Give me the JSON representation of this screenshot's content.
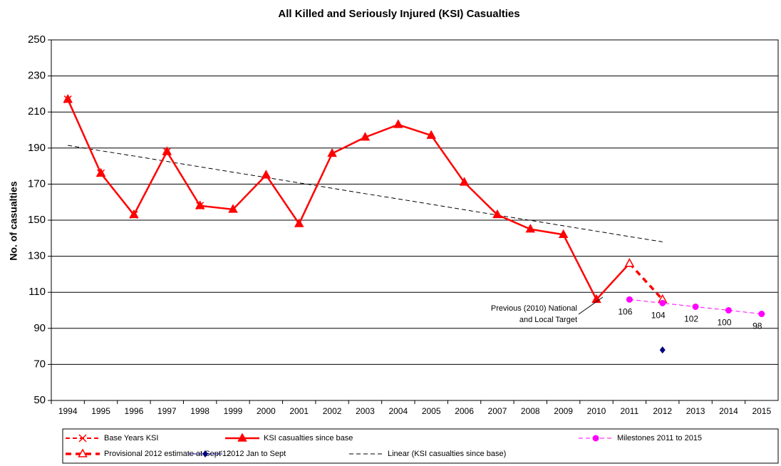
{
  "chart_data": {
    "type": "line",
    "title": "All Killed and Seriously Injured (KSI) Casualties",
    "y_label": "No. of casualties",
    "categories": [
      "1994",
      "1995",
      "1996",
      "1997",
      "1998",
      "1999",
      "2000",
      "2001",
      "2002",
      "2003",
      "2004",
      "2005",
      "2006",
      "2007",
      "2008",
      "2009",
      "2010",
      "2011",
      "2012",
      "2013",
      "2014",
      "2015"
    ],
    "ylim": [
      50,
      250
    ],
    "yticks": [
      50,
      70,
      90,
      110,
      130,
      150,
      170,
      190,
      210,
      230,
      250
    ],
    "grid": true,
    "legend": "bottom",
    "annotation": [
      "Previous (2010) National",
      "and Local Target"
    ],
    "series": [
      {
        "name": "Base Years KSI",
        "color": "#ff0000",
        "marker": "x",
        "dash": "dashed",
        "width": 2,
        "values": [
          217,
          176,
          153,
          188,
          158,
          null,
          null,
          null,
          null,
          null,
          null,
          null,
          null,
          null,
          null,
          null,
          null,
          null,
          null,
          null,
          null,
          null
        ]
      },
      {
        "name": "KSI casualties since base",
        "color": "#ff0000",
        "marker": "triangle",
        "dash": "solid",
        "width": 2.5,
        "values": [
          217,
          176,
          153,
          188,
          158,
          156,
          175,
          148,
          187,
          196,
          203,
          197,
          171,
          153,
          145,
          142,
          106,
          126,
          null,
          null,
          null,
          null
        ]
      },
      {
        "name": "Milestones 2011 to 2015",
        "color": "#ff00ff",
        "marker": "circle",
        "dash": "dashed",
        "width": 1,
        "data_labels": true,
        "values": [
          null,
          null,
          null,
          null,
          null,
          null,
          null,
          null,
          null,
          null,
          null,
          null,
          null,
          null,
          null,
          null,
          null,
          106,
          104,
          102,
          100,
          98
        ]
      },
      {
        "name": "Provisional 2012 estimate at Sept'12",
        "color": "#ff0000",
        "marker": "hollow-triangle",
        "dash": "dashed",
        "width": 3.5,
        "values": [
          null,
          null,
          null,
          null,
          null,
          null,
          null,
          null,
          null,
          null,
          null,
          null,
          null,
          null,
          null,
          null,
          null,
          126,
          106,
          null,
          null,
          null
        ]
      },
      {
        "name": "2012 Jan to Sept",
        "color": "#000080",
        "marker": "diamond",
        "dash": "solid",
        "width": 1,
        "values": [
          null,
          null,
          null,
          null,
          null,
          null,
          null,
          null,
          null,
          null,
          null,
          null,
          null,
          null,
          null,
          null,
          null,
          null,
          78,
          null,
          null,
          null
        ]
      },
      {
        "name": "Linear (KSI casualties since base)",
        "color": "#000000",
        "marker": "none",
        "dash": "dashed",
        "width": 1,
        "values": [
          191.5,
          188.5,
          185.6,
          182.6,
          179.6,
          176.6,
          173.7,
          170.7,
          167.7,
          164.7,
          161.8,
          158.8,
          155.8,
          152.8,
          149.9,
          146.9,
          143.9,
          140.9,
          138,
          null,
          null,
          null
        ]
      }
    ]
  }
}
